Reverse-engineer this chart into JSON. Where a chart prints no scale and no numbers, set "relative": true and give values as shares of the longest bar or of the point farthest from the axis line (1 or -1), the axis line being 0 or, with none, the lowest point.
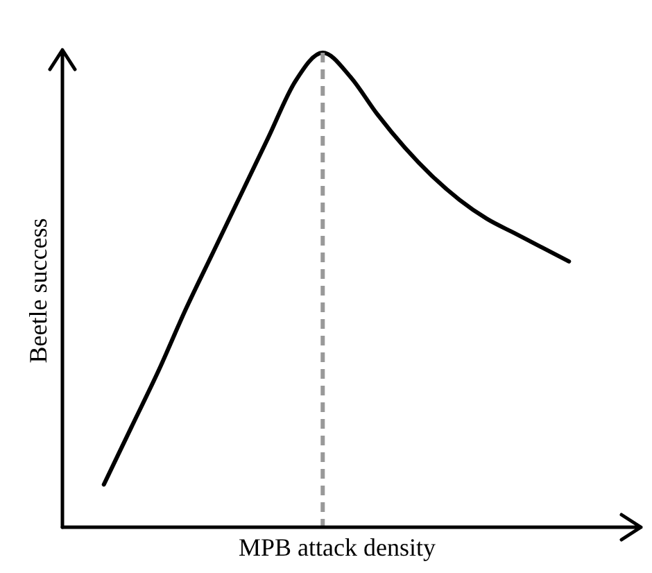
{
  "chart_data": {
    "type": "line",
    "relative": true,
    "xlabel": "MPB attack density",
    "ylabel": "Beetle success",
    "tick_labels": false,
    "categories": [
      null,
      null,
      null,
      null,
      null,
      null,
      null,
      null,
      null,
      null,
      null,
      null,
      null,
      null,
      null,
      null,
      null,
      null
    ],
    "series": [
      {
        "color": "#000000",
        "values": [
          0.09,
          0.21,
          0.33,
          0.46,
          0.58,
          0.7,
          0.82,
          0.94,
          1,
          0.95,
          0.87,
          0.8,
          0.74,
          0.69,
          0.65,
          0.62,
          0.59,
          0.56
        ]
      }
    ]
  }
}
